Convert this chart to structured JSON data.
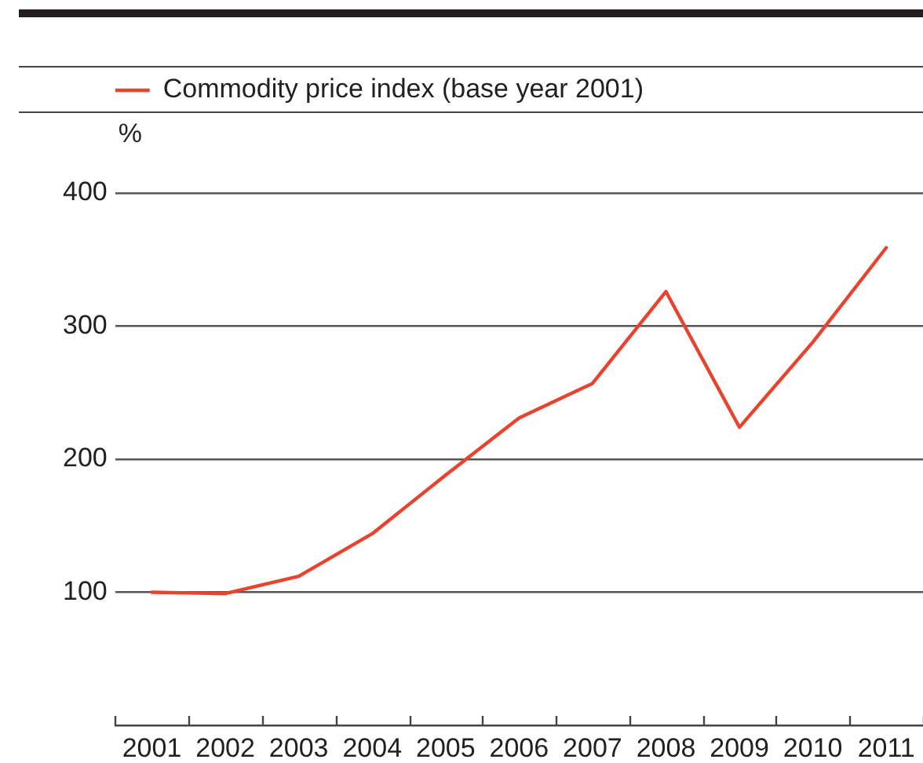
{
  "chart_data": {
    "type": "line",
    "ylabel": "%",
    "categories": [
      "2001",
      "2002",
      "2003",
      "2004",
      "2005",
      "2006",
      "2007",
      "2008",
      "2009",
      "2010",
      "2011"
    ],
    "series": [
      {
        "name": "Commodity price index (base year 2001)",
        "color": "#e8432d",
        "values": [
          100,
          99,
          112,
          144,
          188,
          231,
          257,
          326,
          224,
          288,
          359
        ]
      }
    ],
    "ylim": [
      0,
      400
    ],
    "yticks": [
      100,
      200,
      300,
      400
    ],
    "grid": "y",
    "legend": "top left",
    "marker": "none"
  }
}
